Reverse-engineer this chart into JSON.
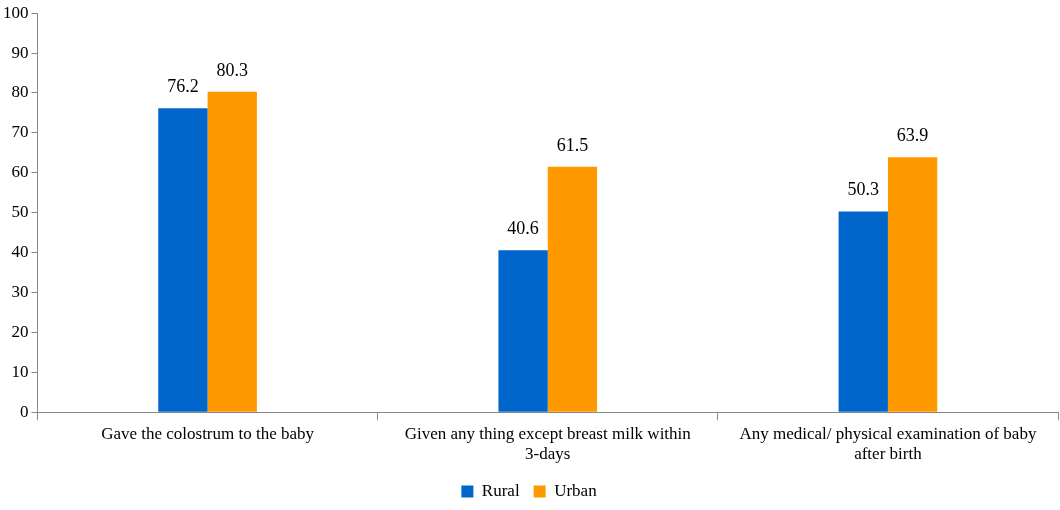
{
  "chart_data": {
    "type": "bar",
    "categories": [
      "Gave the colostrum to the baby",
      "Given any thing except breast milk within 3-days",
      "Any medical/ physical examination of baby after birth"
    ],
    "series": [
      {
        "name": "Rural",
        "color": "#0066cc",
        "values": [
          76.2,
          40.6,
          50.3
        ]
      },
      {
        "name": "Urban",
        "color": "#ff9900",
        "values": [
          80.3,
          61.5,
          63.9
        ]
      }
    ],
    "ylim": [
      0,
      100
    ],
    "yticks": [
      0,
      10,
      20,
      30,
      40,
      50,
      60,
      70,
      80,
      90,
      100
    ],
    "grid": false,
    "legend": "bottom",
    "data_labels": true
  }
}
